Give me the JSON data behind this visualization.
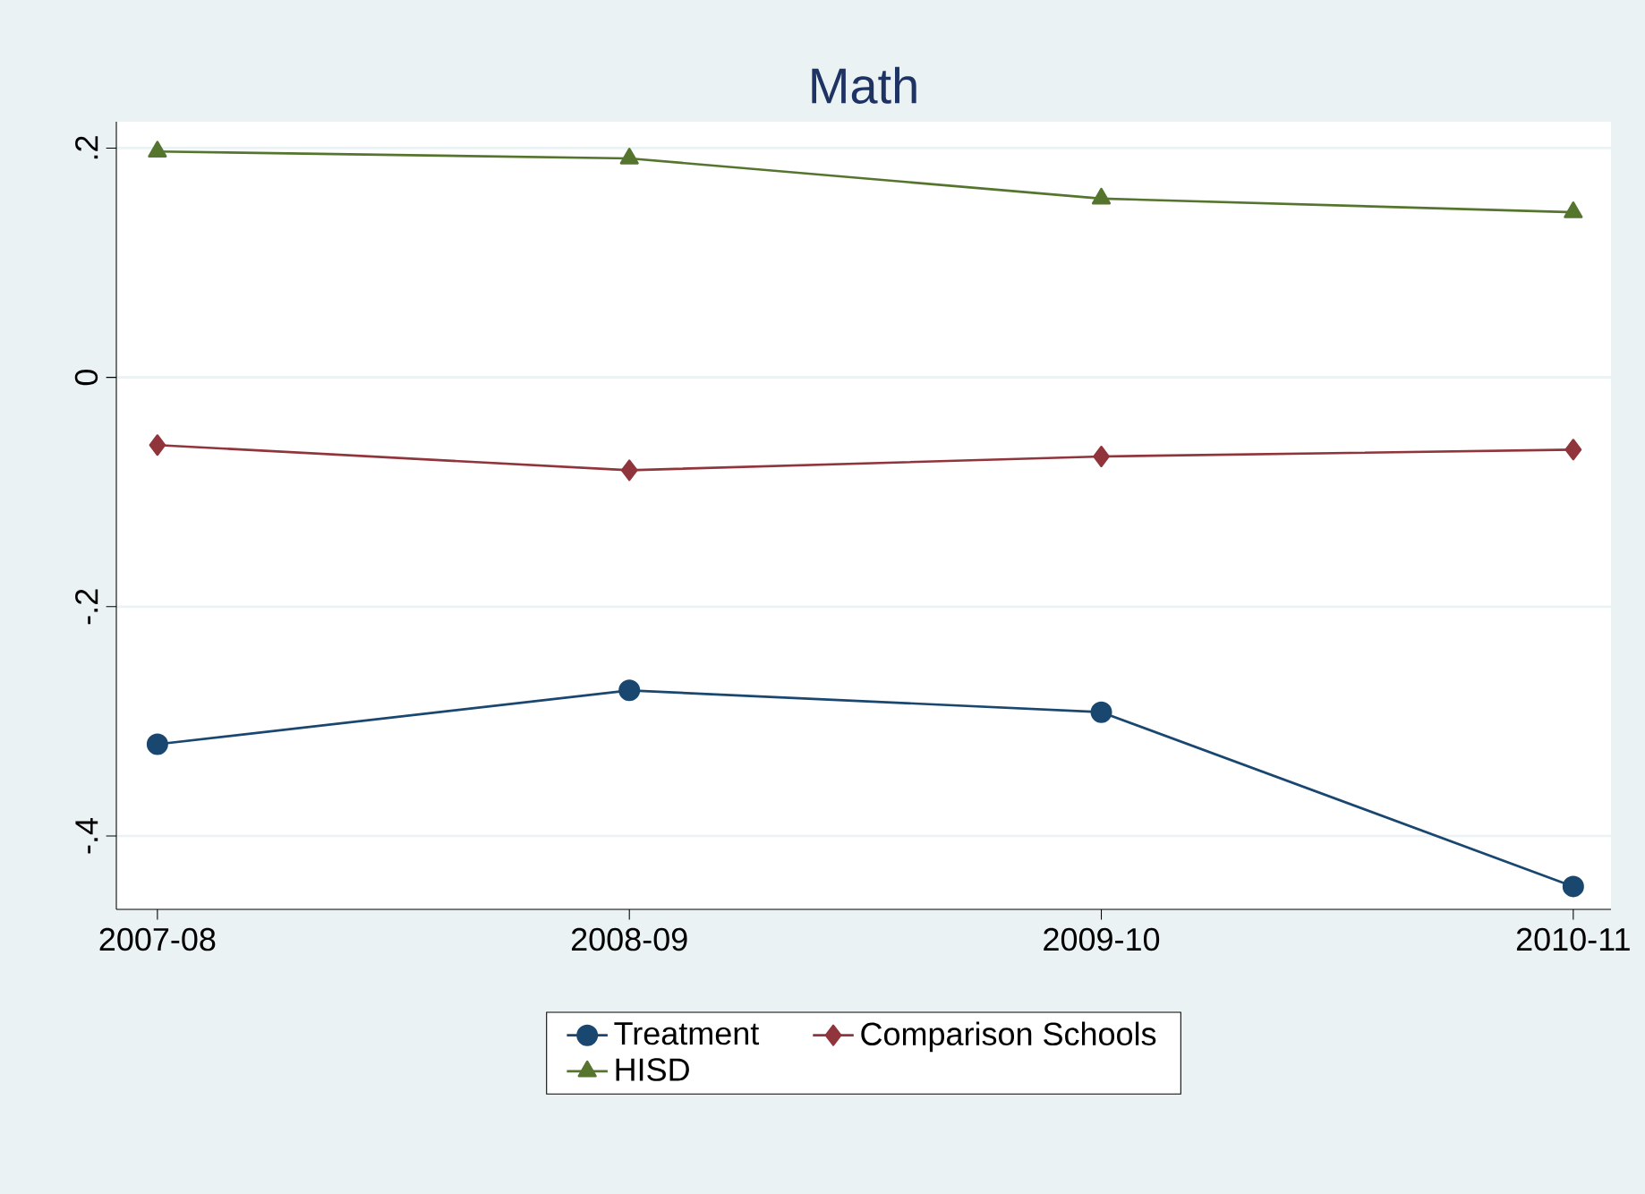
{
  "chart_data": {
    "type": "line",
    "title": "Math",
    "categories": [
      "2007-08",
      "2008-09",
      "2009-10",
      "2010-11"
    ],
    "series": [
      {
        "name": "Treatment",
        "color": "#1a476f",
        "marker": "circle",
        "values": [
          -0.32,
          -0.273,
          -0.292,
          -0.444
        ]
      },
      {
        "name": "Comparison Schools",
        "color": "#90353b",
        "marker": "diamond",
        "values": [
          -0.059,
          -0.081,
          -0.069,
          -0.063
        ]
      },
      {
        "name": "HISD",
        "color": "#55752f",
        "marker": "triangle",
        "values": [
          0.197,
          0.191,
          0.156,
          0.144
        ]
      }
    ],
    "ylim": [
      -0.464,
      0.223
    ],
    "yticks": [
      {
        "value": -0.4,
        "label": "-.4"
      },
      {
        "value": -0.2,
        "label": "-.2"
      },
      0,
      {
        "value": 0.2,
        "label": ".2"
      }
    ],
    "grid": "y",
    "legend": "bottom",
    "line_style": "solid"
  }
}
